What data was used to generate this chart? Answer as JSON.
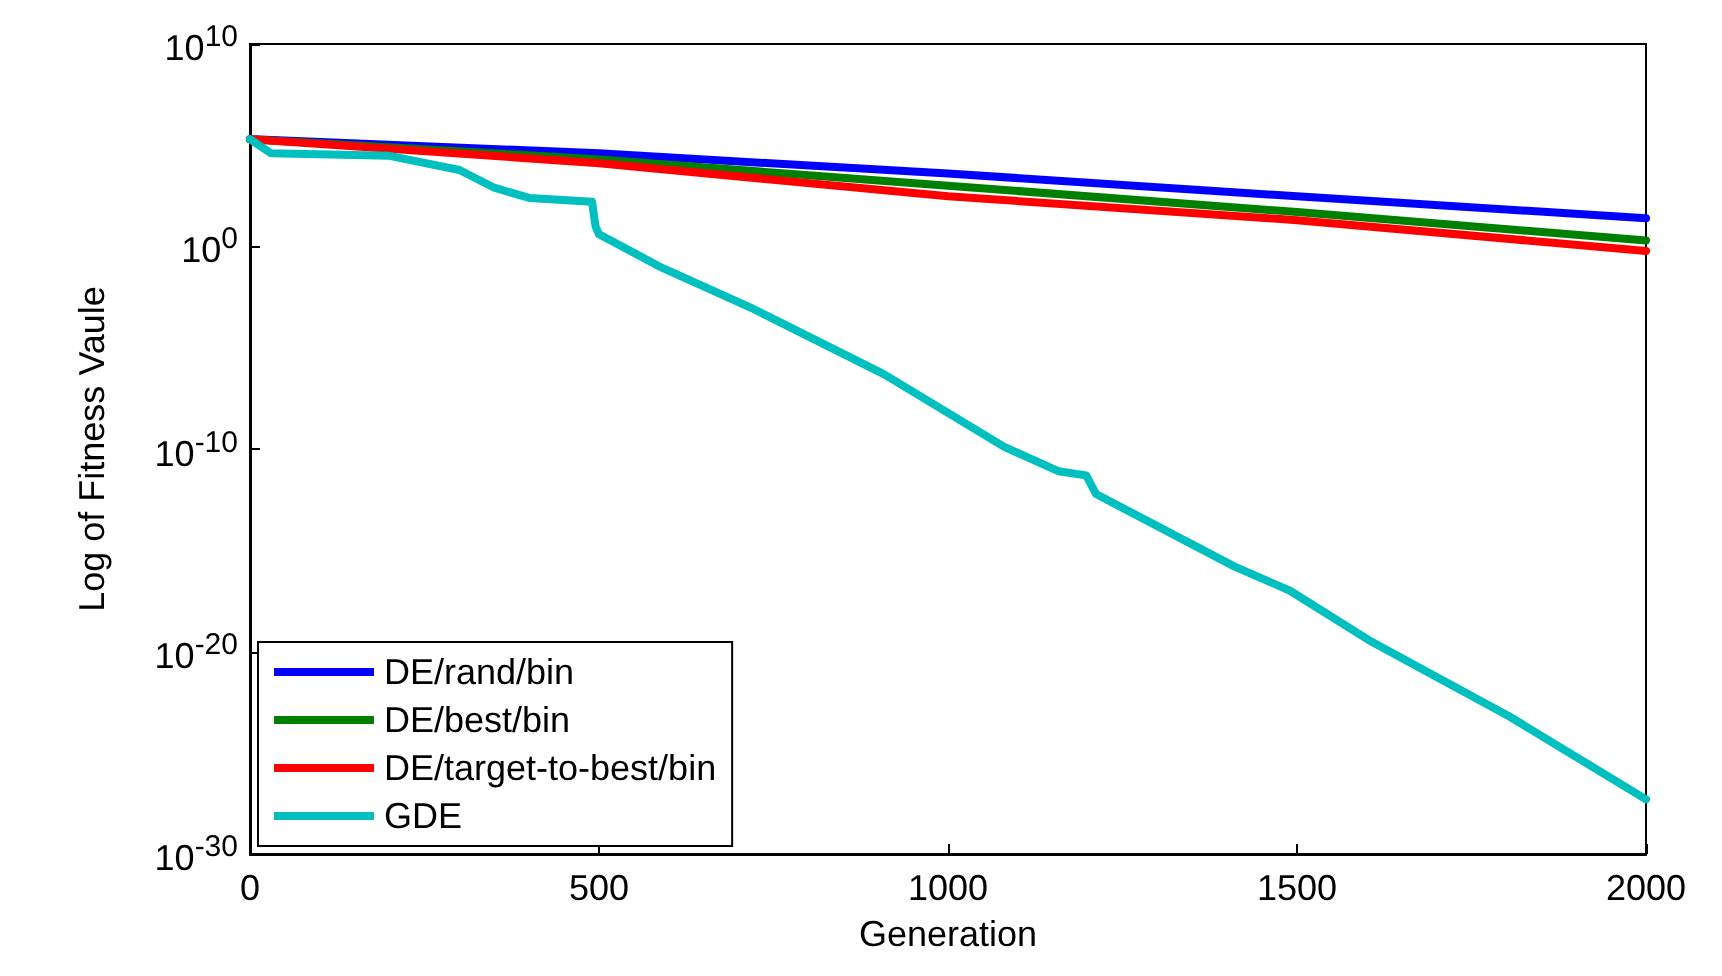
{
  "chart_data": {
    "type": "line",
    "xlabel": "Generation",
    "ylabel": "Log of Fitness Vaule",
    "log": "y",
    "xlim": [
      0,
      2000
    ],
    "xticks": [
      0,
      500,
      1000,
      1500,
      2000
    ],
    "ylim": [
      1e-30,
      10000000000.0
    ],
    "yticks": [
      {
        "value": 10000000000.0,
        "label": "10$^{10}$"
      },
      {
        "value": 1,
        "label": "10$^{0}$"
      },
      {
        "value": 1e-10,
        "label": "10$^{-10}$"
      },
      {
        "value": 1e-20,
        "label": "10$^{-20}$"
      },
      {
        "value": 1e-30,
        "label": "10$^{-30}$"
      }
    ],
    "grid": false,
    "legend": "bottom left",
    "marker": "none",
    "line_style": "solid",
    "series": [
      {
        "name": "DE/rand/bin",
        "color": "#0000ff",
        "x": [
          0,
          500,
          1000,
          1500,
          2000
        ],
        "values": [
          200000.0,
          40000.0,
          4000.0,
          300,
          25
        ]
      },
      {
        "name": "DE/best/bin",
        "color": "#008000",
        "x": [
          0,
          500,
          1000,
          1500,
          2000
        ],
        "values": [
          200000.0,
          20000.0,
          1000.0,
          50,
          2
        ]
      },
      {
        "name": "DE/target-to-best/bin",
        "color": "#ff0000",
        "x": [
          0,
          500,
          1000,
          1500,
          2000
        ],
        "values": [
          200000.0,
          13000.0,
          300,
          20,
          0.6
        ]
      },
      {
        "name": "GDE",
        "color": "#00bfbf",
        "x": [
          0,
          30,
          200,
          300,
          350,
          400,
          490,
          495,
          500,
          590,
          722,
          908,
          1080,
          1158,
          1198,
          1212,
          1410,
          1490,
          1607,
          1805,
          2000
        ],
        "values": [
          200000.0,
          40000.0,
          30000.0,
          6000.0,
          800.0,
          250.0,
          160.0,
          10,
          4,
          0.09,
          0.0008,
          5e-07,
          1.3e-10,
          8e-12,
          5e-12,
          6e-13,
          1.6e-16,
          1e-17,
          3e-20,
          6e-24,
          5e-28
        ]
      }
    ]
  }
}
